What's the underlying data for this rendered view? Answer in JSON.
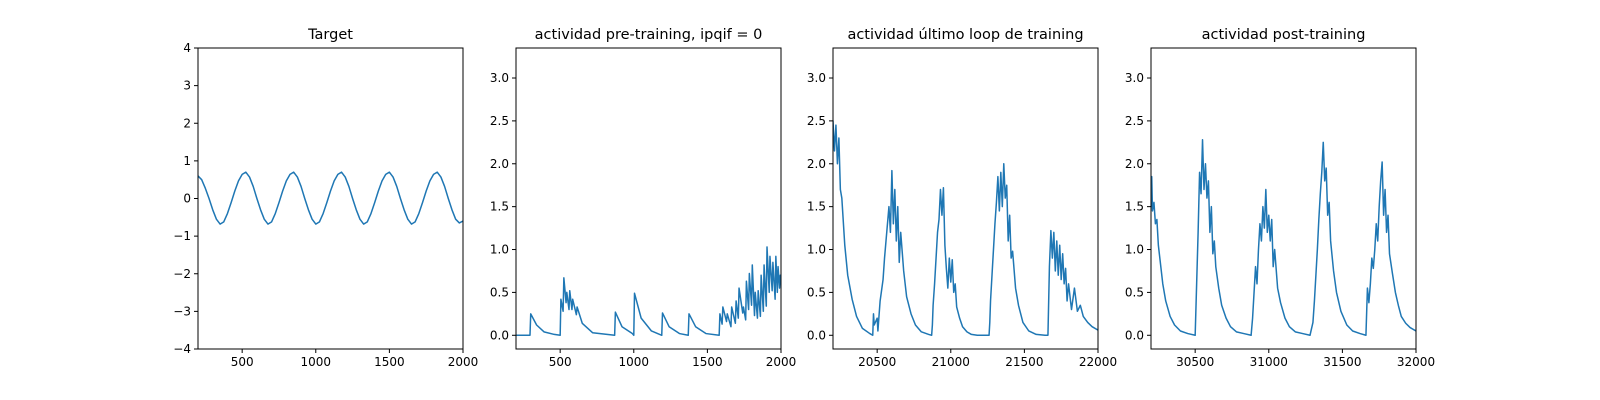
{
  "chart_data": [
    {
      "type": "line",
      "title": "Target",
      "xlabel": "",
      "ylabel": "",
      "xlim": [
        200,
        2000
      ],
      "ylim": [
        -4,
        4
      ],
      "xticks": [
        500,
        1000,
        1500,
        2000
      ],
      "xtick_labels": [
        "500",
        "1000",
        "1500",
        "2000"
      ],
      "yticks": [
        -4,
        -3,
        -2,
        -1,
        0,
        1,
        2,
        3,
        4
      ],
      "ytick_labels": [
        "−4",
        "−3",
        "−2",
        "−1",
        "0",
        "1",
        "2",
        "3",
        "4"
      ],
      "grid": false,
      "color": "#1f77b4",
      "series": [
        {
          "x": [
            200,
            225,
            250,
            275,
            300,
            325,
            350,
            375,
            400,
            425,
            450,
            475,
            500,
            525,
            550,
            575,
            600,
            625,
            650,
            675,
            700,
            725,
            750,
            775,
            800,
            825,
            850,
            875,
            900,
            925,
            950,
            975,
            1000,
            1025,
            1050,
            1075,
            1100,
            1125,
            1150,
            1175,
            1200,
            1225,
            1250,
            1275,
            1300,
            1325,
            1350,
            1375,
            1400,
            1425,
            1450,
            1475,
            1500,
            1525,
            1550,
            1575,
            1600,
            1625,
            1650,
            1675,
            1700,
            1725,
            1750,
            1775,
            1800,
            1825,
            1850,
            1875,
            1900,
            1925,
            1950,
            1975,
            2000
          ],
          "y": [
            0.6,
            0.5,
            0.27,
            0.0,
            -0.3,
            -0.55,
            -0.68,
            -0.62,
            -0.4,
            -0.11,
            0.2,
            0.47,
            0.64,
            0.7,
            0.57,
            0.32,
            0.0,
            -0.3,
            -0.55,
            -0.68,
            -0.62,
            -0.4,
            -0.11,
            0.2,
            0.47,
            0.64,
            0.7,
            0.57,
            0.32,
            0.0,
            -0.3,
            -0.55,
            -0.68,
            -0.62,
            -0.4,
            -0.11,
            0.2,
            0.47,
            0.64,
            0.7,
            0.57,
            0.32,
            0.0,
            -0.3,
            -0.55,
            -0.68,
            -0.62,
            -0.4,
            -0.11,
            0.2,
            0.47,
            0.64,
            0.7,
            0.57,
            0.32,
            0.0,
            -0.3,
            -0.55,
            -0.68,
            -0.62,
            -0.4,
            -0.11,
            0.2,
            0.47,
            0.64,
            0.7,
            0.57,
            0.32,
            0.0,
            -0.3,
            -0.55,
            -0.65,
            -0.6
          ]
        }
      ]
    },
    {
      "type": "line",
      "title": "actividad pre-training, ipqif = 0",
      "xlabel": "",
      "ylabel": "",
      "xlim": [
        200,
        2000
      ],
      "ylim": [
        -0.16,
        3.35
      ],
      "xticks": [
        500,
        1000,
        1500,
        2000
      ],
      "xtick_labels": [
        "500",
        "1000",
        "1500",
        "2000"
      ],
      "yticks": [
        0.0,
        0.5,
        1.0,
        1.5,
        2.0,
        2.5,
        3.0
      ],
      "ytick_labels": [
        "0.0",
        "0.5",
        "1.0",
        "1.5",
        "2.0",
        "2.5",
        "3.0"
      ],
      "grid": false,
      "color": "#1f77b4",
      "series": [
        {
          "x": [
            200,
            295,
            300,
            340,
            390,
            460,
            500,
            505,
            520,
            525,
            540,
            545,
            560,
            565,
            580,
            585,
            610,
            615,
            650,
            720,
            870,
            875,
            920,
            990,
            1000,
            1005,
            1050,
            1120,
            1190,
            1195,
            1240,
            1310,
            1370,
            1375,
            1420,
            1490,
            1580,
            1585,
            1600,
            1605,
            1630,
            1635,
            1660,
            1665,
            1690,
            1695,
            1710,
            1715,
            1740,
            1745,
            1760,
            1765,
            1780,
            1785,
            1800,
            1805,
            1820,
            1825,
            1840,
            1845,
            1860,
            1865,
            1880,
            1885,
            1900,
            1905,
            1920,
            1925,
            1940,
            1945,
            1960,
            1965,
            1975,
            1980,
            1990,
            1995,
            2000
          ],
          "y": [
            0.0,
            0.0,
            0.25,
            0.12,
            0.04,
            0.01,
            0.0,
            0.42,
            0.28,
            0.67,
            0.38,
            0.5,
            0.3,
            0.52,
            0.3,
            0.42,
            0.24,
            0.33,
            0.14,
            0.03,
            0.0,
            0.27,
            0.1,
            0.02,
            0.0,
            0.49,
            0.2,
            0.05,
            0.0,
            0.26,
            0.1,
            0.02,
            0.0,
            0.25,
            0.1,
            0.02,
            0.0,
            0.25,
            0.13,
            0.33,
            0.16,
            0.25,
            0.1,
            0.33,
            0.14,
            0.4,
            0.2,
            0.55,
            0.26,
            0.33,
            0.18,
            0.63,
            0.3,
            0.72,
            0.35,
            0.82,
            0.23,
            0.5,
            0.2,
            0.52,
            0.22,
            0.7,
            0.28,
            0.82,
            0.34,
            1.03,
            0.5,
            0.92,
            0.52,
            0.85,
            0.42,
            0.92,
            0.5,
            0.8,
            0.55,
            0.7,
            0.6
          ]
        }
      ]
    },
    {
      "type": "line",
      "title": "actividad último loop de training",
      "xlabel": "",
      "ylabel": "",
      "xlim": [
        20200,
        22000
      ],
      "ylim": [
        -0.16,
        3.35
      ],
      "xticks": [
        20500,
        21000,
        21500,
        22000
      ],
      "xtick_labels": [
        "20500",
        "21000",
        "21500",
        "22000"
      ],
      "yticks": [
        0.0,
        0.5,
        1.0,
        1.5,
        2.0,
        2.5,
        3.0
      ],
      "ytick_labels": [
        "0.0",
        "0.5",
        "1.0",
        "1.5",
        "2.0",
        "2.5",
        "3.0"
      ],
      "grid": false,
      "color": "#1f77b4",
      "series": [
        {
          "x": [
            20200,
            20210,
            20220,
            20230,
            20240,
            20250,
            20260,
            20280,
            20300,
            20330,
            20360,
            20400,
            20450,
            20470,
            20475,
            20480,
            20500,
            20505,
            20520,
            20540,
            20550,
            20560,
            20570,
            20580,
            20590,
            20600,
            20610,
            20620,
            20630,
            20640,
            20650,
            20660,
            20680,
            20700,
            20730,
            20760,
            20800,
            20850,
            20870,
            20875,
            20880,
            20890,
            20900,
            20910,
            20920,
            20930,
            20940,
            20950,
            20960,
            20970,
            20980,
            20990,
            21000,
            21010,
            21020,
            21030,
            21040,
            21060,
            21080,
            21110,
            21140,
            21180,
            21230,
            21260,
            21265,
            21270,
            21280,
            21290,
            21300,
            21310,
            21320,
            21330,
            21340,
            21350,
            21360,
            21370,
            21380,
            21390,
            21400,
            21410,
            21420,
            21440,
            21460,
            21490,
            21530,
            21580,
            21640,
            21660,
            21665,
            21670,
            21680,
            21690,
            21700,
            21710,
            21720,
            21730,
            21740,
            21750,
            21760,
            21770,
            21780,
            21790,
            21800,
            21820,
            21840,
            21860,
            21880,
            21900,
            21930,
            21960,
            22000
          ],
          "y": [
            2.5,
            2.15,
            2.45,
            2.0,
            2.3,
            1.7,
            1.6,
            1.05,
            0.7,
            0.42,
            0.22,
            0.08,
            0.02,
            0.0,
            0.25,
            0.12,
            0.2,
            0.05,
            0.4,
            0.65,
            0.9,
            1.1,
            1.3,
            1.5,
            1.2,
            1.92,
            1.3,
            1.7,
            1.1,
            1.5,
            0.85,
            1.2,
            0.75,
            0.45,
            0.25,
            0.12,
            0.04,
            0.01,
            0.0,
            0.12,
            0.35,
            0.6,
            0.9,
            1.2,
            1.35,
            1.7,
            1.4,
            1.72,
            1.05,
            0.78,
            0.55,
            0.9,
            0.62,
            0.88,
            0.5,
            0.6,
            0.33,
            0.2,
            0.1,
            0.04,
            0.01,
            0.0,
            0.0,
            0.0,
            0.15,
            0.4,
            0.7,
            1.0,
            1.3,
            1.55,
            1.85,
            1.45,
            1.9,
            1.5,
            2.0,
            1.6,
            1.75,
            1.1,
            1.4,
            0.9,
            0.98,
            0.55,
            0.35,
            0.15,
            0.05,
            0.01,
            0.0,
            0.0,
            0.4,
            0.8,
            1.22,
            0.9,
            1.2,
            0.75,
            1.1,
            0.7,
            1.05,
            0.65,
            0.95,
            0.6,
            0.78,
            0.4,
            0.6,
            0.3,
            0.55,
            0.28,
            0.35,
            0.22,
            0.15,
            0.1,
            0.06
          ]
        }
      ]
    },
    {
      "type": "line",
      "title": "actividad post-training",
      "xlabel": "",
      "ylabel": "",
      "xlim": [
        30200,
        32000
      ],
      "ylim": [
        -0.16,
        3.35
      ],
      "xticks": [
        30500,
        31000,
        31500,
        32000
      ],
      "xtick_labels": [
        "30500",
        "31000",
        "31500",
        "32000"
      ],
      "yticks": [
        0.0,
        0.5,
        1.0,
        1.5,
        2.0,
        2.5,
        3.0
      ],
      "ytick_labels": [
        "0.0",
        "0.5",
        "1.0",
        "1.5",
        "2.0",
        "2.5",
        "3.0"
      ],
      "grid": false,
      "color": "#1f77b4",
      "series": [
        {
          "x": [
            30200,
            30205,
            30210,
            30220,
            30230,
            30240,
            30250,
            30260,
            30280,
            30300,
            30330,
            30360,
            30400,
            30450,
            30500,
            30510,
            30520,
            30530,
            30540,
            30550,
            30560,
            30570,
            30580,
            30590,
            30600,
            30610,
            30620,
            30630,
            30640,
            30660,
            30680,
            30710,
            30740,
            30780,
            30830,
            30880,
            30890,
            30900,
            30910,
            30920,
            30930,
            30940,
            30950,
            30960,
            30970,
            30980,
            30990,
            31000,
            31010,
            31020,
            31030,
            31040,
            31060,
            31080,
            31110,
            31140,
            31180,
            31230,
            31280,
            31300,
            31310,
            31320,
            31330,
            31340,
            31350,
            31360,
            31370,
            31380,
            31390,
            31400,
            31410,
            31420,
            31440,
            31460,
            31490,
            31530,
            31570,
            31620,
            31660,
            31670,
            31680,
            31690,
            31700,
            31710,
            31720,
            31730,
            31740,
            31750,
            31760,
            31770,
            31780,
            31790,
            31800,
            31810,
            31820,
            31840,
            31860,
            31880,
            31900,
            31930,
            31960,
            32000
          ],
          "y": [
            1.5,
            1.85,
            1.45,
            1.55,
            1.3,
            1.35,
            1.05,
            0.9,
            0.6,
            0.4,
            0.22,
            0.12,
            0.05,
            0.02,
            0.0,
            0.6,
            1.2,
            1.9,
            1.65,
            2.28,
            1.7,
            2.0,
            1.6,
            1.8,
            1.2,
            1.5,
            0.95,
            1.1,
            0.8,
            0.55,
            0.35,
            0.2,
            0.1,
            0.04,
            0.02,
            0.0,
            0.2,
            0.5,
            0.8,
            0.6,
            1.0,
            1.3,
            1.1,
            1.5,
            1.25,
            1.7,
            1.2,
            1.4,
            1.1,
            1.35,
            0.8,
            1.0,
            0.55,
            0.38,
            0.2,
            0.1,
            0.04,
            0.02,
            0.0,
            0.15,
            0.4,
            0.7,
            1.0,
            1.35,
            1.65,
            1.9,
            2.25,
            1.8,
            1.95,
            1.4,
            1.55,
            1.1,
            0.75,
            0.5,
            0.28,
            0.12,
            0.05,
            0.02,
            0.0,
            0.55,
            0.38,
            0.6,
            0.9,
            0.78,
            1.0,
            1.3,
            1.1,
            1.5,
            1.8,
            2.02,
            1.4,
            1.7,
            1.2,
            1.4,
            0.95,
            0.72,
            0.5,
            0.35,
            0.22,
            0.14,
            0.09,
            0.05
          ]
        }
      ]
    }
  ]
}
